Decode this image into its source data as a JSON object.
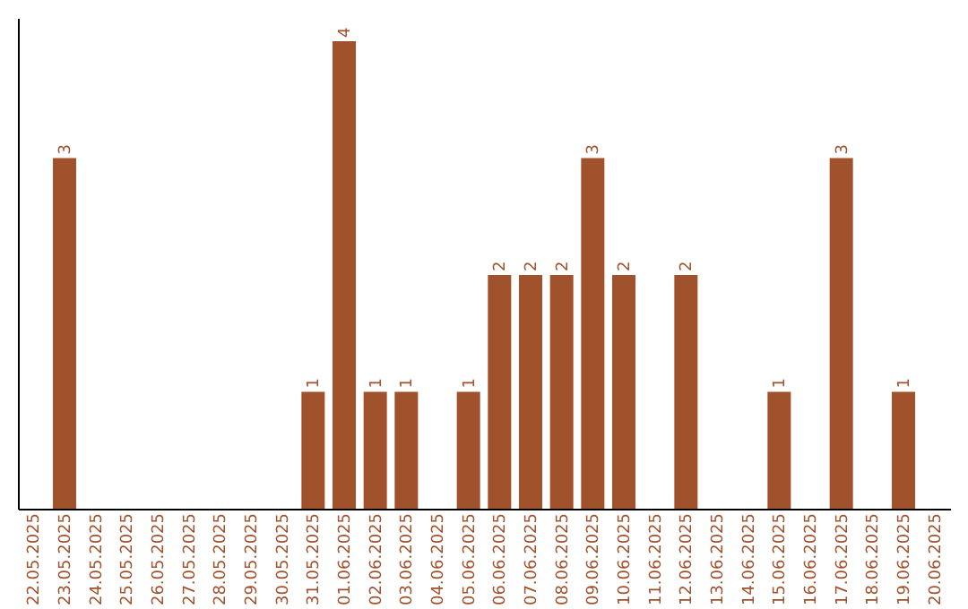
{
  "chart_data": {
    "type": "bar",
    "categories": [
      "22.05.2025",
      "23.05.2025",
      "24.05.2025",
      "25.05.2025",
      "26.05.2025",
      "27.05.2025",
      "28.05.2025",
      "29.05.2025",
      "30.05.2025",
      "31.05.2025",
      "01.06.2025",
      "02.06.2025",
      "03.06.2025",
      "04.06.2025",
      "05.06.2025",
      "06.06.2025",
      "07.06.2025",
      "08.06.2025",
      "09.06.2025",
      "10.06.2025",
      "11.06.2025",
      "12.06.2025",
      "13.06.2025",
      "14.06.2025",
      "15.06.2025",
      "16.06.2025",
      "17.06.2025",
      "18.06.2025",
      "19.06.2025",
      "20.06.2025"
    ],
    "values": [
      0,
      3,
      0,
      0,
      0,
      0,
      0,
      0,
      0,
      1,
      4,
      1,
      1,
      0,
      1,
      2,
      2,
      2,
      3,
      2,
      0,
      2,
      0,
      0,
      1,
      0,
      3,
      0,
      1,
      0
    ],
    "value_labels": [
      null,
      "3",
      null,
      null,
      null,
      null,
      null,
      null,
      null,
      "1",
      "4",
      "1",
      "1",
      null,
      "1",
      "2",
      "2",
      "2",
      "3",
      "2",
      null,
      "2",
      null,
      null,
      "1",
      null,
      "3",
      null,
      "1",
      null
    ],
    "color": "#a0522d",
    "ylim": [
      0,
      4.2
    ],
    "tick_labels": "x",
    "grid": false
  }
}
